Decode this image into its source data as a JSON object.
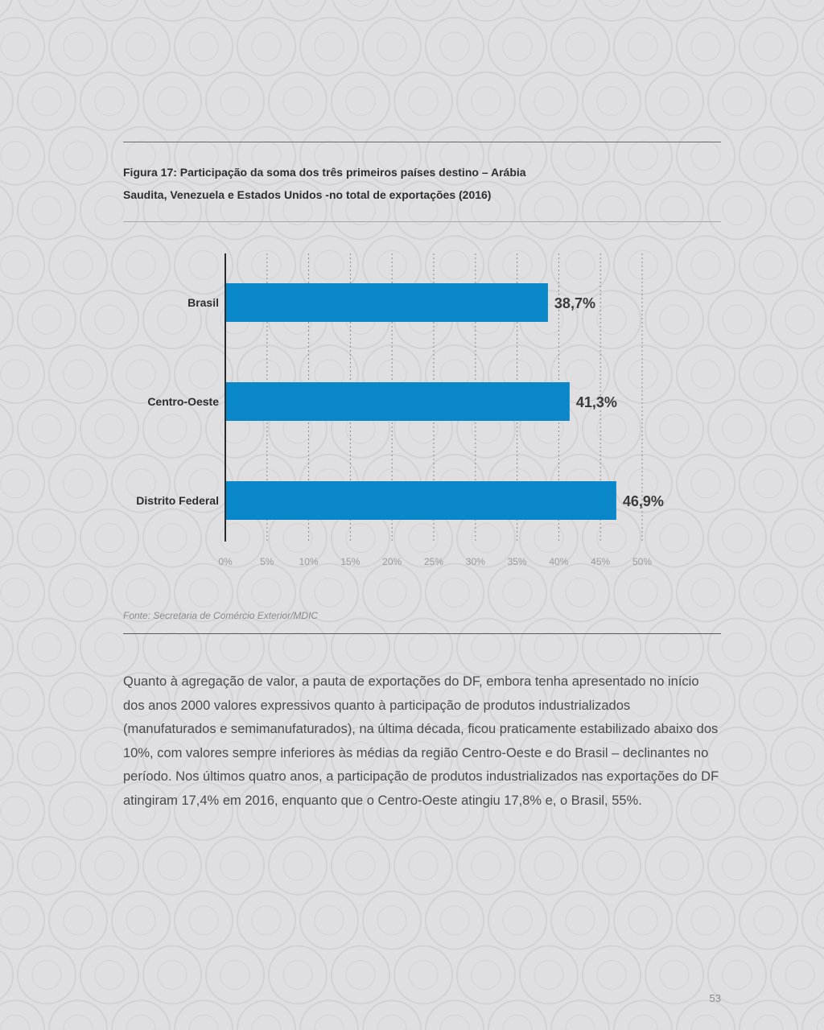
{
  "figure": {
    "title_line1": "Figura 17: Participação da soma dos três primeiros países destino – Arábia",
    "title_line2": "Saudita, Venezuela e Estados Unidos -no total de exportações (2016)",
    "source": "Fonte: Secretaria de Comércio Exterior/MDIC"
  },
  "chart_data": {
    "type": "bar",
    "orientation": "horizontal",
    "categories": [
      "Brasil",
      "Centro-Oeste",
      "Distrito Federal"
    ],
    "values": [
      38.7,
      41.3,
      46.9
    ],
    "value_labels": [
      "38,7%",
      "41,3%",
      "46,9%"
    ],
    "xlim": [
      0,
      50
    ],
    "x_ticks": [
      0,
      5,
      10,
      15,
      20,
      25,
      30,
      35,
      40,
      45,
      50
    ],
    "x_tick_labels": [
      "0%",
      "5%",
      "10%",
      "15%",
      "20%",
      "25%",
      "30%",
      "35%",
      "40%",
      "45%",
      "50%"
    ],
    "grid": "vertical dotted",
    "bar_color": "#0a87c9"
  },
  "body": {
    "paragraph": "Quanto à agregação de valor, a pauta de exportações do DF, embora tenha apresentado no início dos anos 2000 valores expressivos quanto à participação de produtos industrializados (manufaturados e semimanufaturados), na última década, ficou praticamente estabilizado abaixo dos 10%, com valores sempre inferiores às médias da região Centro-Oeste e do Brasil – declinantes no período. Nos últimos quatro anos, a participação de produtos industrializados nas exportações do DF atingiram 17,4% em 2016, enquanto que o Centro-Oeste atingiu 17,8% e, o Brasil, 55%."
  },
  "page_number": "53"
}
